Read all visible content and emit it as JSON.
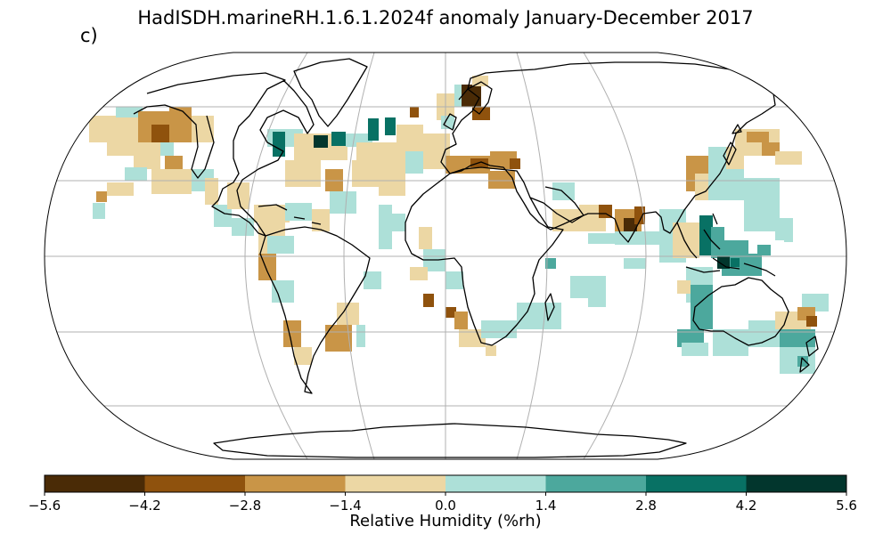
{
  "title": "HadISDH.marineRH.1.6.1.2024f anomaly January-December 2017",
  "panel_label": "c)",
  "colorbar": {
    "label": "Relative Humidity (%rh)",
    "ticks": [
      "−5.6",
      "−4.2",
      "−2.8",
      "−1.4",
      "0.0",
      "1.4",
      "2.8",
      "4.2",
      "5.6"
    ],
    "bounds": [
      -5.6,
      -4.2,
      -2.8,
      -1.4,
      0.0,
      1.4,
      2.8,
      4.2,
      5.6
    ],
    "colors": [
      "#4a2b06",
      "#8f520d",
      "#c99547",
      "#ecd7a4",
      "#ade0d8",
      "#4ca89d",
      "#087164",
      "#02362d"
    ]
  },
  "map_colors": {
    "coast": "#000000",
    "grid": "#b0b0b0",
    "ocean": "#ffffff"
  }
}
